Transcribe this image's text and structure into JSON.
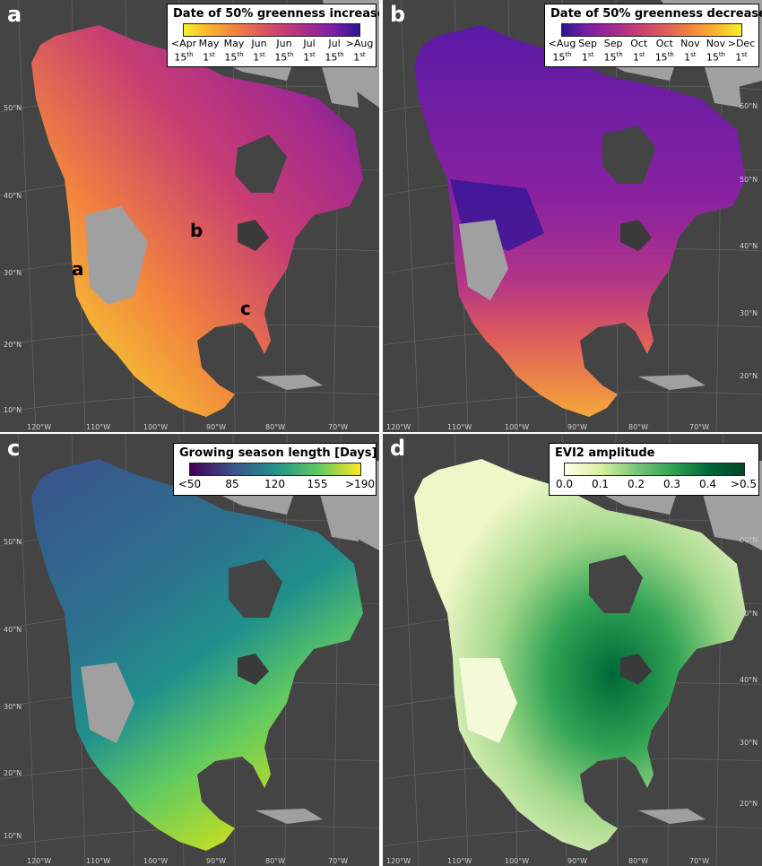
{
  "panels": {
    "a": {
      "letter": "a",
      "legend_title": "Date of 50% greenness increase",
      "ticks": [
        {
          "main": "<Apr",
          "day": "15",
          "suf": "th"
        },
        {
          "main": "May",
          "day": "1",
          "suf": "st"
        },
        {
          "main": "May",
          "day": "15",
          "suf": "th"
        },
        {
          "main": "Jun",
          "day": "1",
          "suf": "st"
        },
        {
          "main": "Jun",
          "day": "15",
          "suf": "th"
        },
        {
          "main": "Jul",
          "day": "1",
          "suf": "st"
        },
        {
          "main": "Jul",
          "day": "15",
          "suf": "th"
        },
        {
          "main": ">Aug",
          "day": "1",
          "suf": "st"
        }
      ],
      "colors": [
        "#f7f12a",
        "#fbb32f",
        "#f2843e",
        "#de5d5a",
        "#c73d73",
        "#a32a8e",
        "#7a1ea6",
        "#2c1496"
      ],
      "lat_labels": [
        "50°N",
        "40°N",
        "30°N",
        "20°N",
        "10°N"
      ],
      "lon_labels": [
        "120°W",
        "110°W",
        "100°W",
        "90°W",
        "80°W",
        "70°W"
      ],
      "site_labels": [
        "a",
        "b",
        "c"
      ]
    },
    "b": {
      "letter": "b",
      "legend_title": "Date of 50% greenness decrease",
      "ticks": [
        {
          "main": "<Aug",
          "day": "15",
          "suf": "th"
        },
        {
          "main": "Sep",
          "day": "1",
          "suf": "st"
        },
        {
          "main": "Sep",
          "day": "15",
          "suf": "th"
        },
        {
          "main": "Oct",
          "day": "1",
          "suf": "st"
        },
        {
          "main": "Oct",
          "day": "15",
          "suf": "th"
        },
        {
          "main": "Nov",
          "day": "1",
          "suf": "st"
        },
        {
          "main": "Nov",
          "day": "15",
          "suf": "th"
        },
        {
          "main": ">Dec",
          "day": "1",
          "suf": "st"
        }
      ],
      "colors": [
        "#2c1496",
        "#7a1ea6",
        "#a32a8e",
        "#c73d73",
        "#de5d5a",
        "#f2843e",
        "#fbb32f",
        "#f7f12a"
      ],
      "lat_labels": [
        "60°N",
        "50°N",
        "40°N",
        "30°N",
        "20°N"
      ],
      "lon_labels": [
        "120°W",
        "110°W",
        "100°W",
        "90°W",
        "80°W",
        "70°W"
      ]
    },
    "c": {
      "letter": "c",
      "legend_title": "Growing season length [Days]",
      "ticks": [
        "<50",
        "85",
        "120",
        "155",
        ">190"
      ],
      "colors": [
        "#440154",
        "#3b528b",
        "#21918c",
        "#5ec962",
        "#fde725"
      ],
      "lat_labels": [
        "50°N",
        "40°N",
        "30°N",
        "20°N",
        "10°N"
      ],
      "lon_labels": [
        "120°W",
        "110°W",
        "100°W",
        "90°W",
        "80°W",
        "70°W"
      ]
    },
    "d": {
      "letter": "d",
      "legend_title": "EVI2 amplitude",
      "ticks": [
        "0.0",
        "0.1",
        "0.2",
        "0.3",
        "0.4",
        ">0.5"
      ],
      "colors": [
        "#ffffe5",
        "#d9f0a3",
        "#78c679",
        "#31a354",
        "#006837",
        "#004529"
      ],
      "lat_labels": [
        "60°N",
        "50°N",
        "40°N",
        "30°N",
        "20°N"
      ],
      "lon_labels": [
        "120°W",
        "110°W",
        "100°W",
        "90°W",
        "80°W",
        "70°W"
      ]
    }
  },
  "style": {
    "ocean": "#444444",
    "no_data": "#a0a0a0",
    "water": "#3a3a3a"
  }
}
